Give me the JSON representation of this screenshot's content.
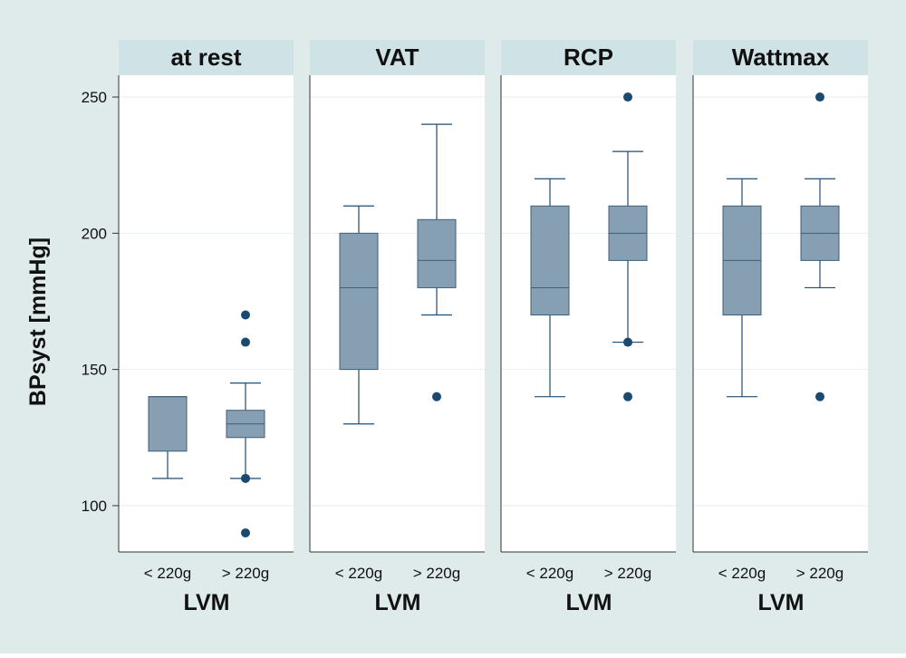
{
  "colors": {
    "background": "#dfeaea",
    "panel_header": "#cfe2e6",
    "plot_bg": "#ffffff",
    "grid": "#e8eeee",
    "box_fill": "#869fb2",
    "box_stroke": "#3e5f7a",
    "whisker": "#1f4e73",
    "outlier": "#1a4a70",
    "text": "#111111"
  },
  "chart_data": {
    "type": "box",
    "ylabel": "BPsyst [mmHg]",
    "xlabel": "LVM",
    "ylim": [
      83,
      258
    ],
    "yticks": [
      100,
      150,
      200,
      250
    ],
    "grid": true,
    "categories": [
      "< 220g",
      "> 220g"
    ],
    "panels": [
      {
        "title": "at rest",
        "boxes": [
          {
            "category": "< 220g",
            "whisker_low": 110,
            "q1": 120,
            "median": 140,
            "q3": 140,
            "whisker_high": 140,
            "outliers": []
          },
          {
            "category": "> 220g",
            "whisker_low": 110,
            "q1": 125,
            "median": 130,
            "q3": 135,
            "whisker_high": 145,
            "outliers": [
              90,
              110,
              160,
              170
            ]
          }
        ]
      },
      {
        "title": "VAT",
        "boxes": [
          {
            "category": "< 220g",
            "whisker_low": 130,
            "q1": 150,
            "median": 180,
            "q3": 200,
            "whisker_high": 210,
            "outliers": []
          },
          {
            "category": "> 220g",
            "whisker_low": 170,
            "q1": 180,
            "median": 190,
            "q3": 205,
            "whisker_high": 240,
            "outliers": [
              140
            ]
          }
        ]
      },
      {
        "title": "RCP",
        "boxes": [
          {
            "category": "< 220g",
            "whisker_low": 140,
            "q1": 170,
            "median": 180,
            "q3": 210,
            "whisker_high": 220,
            "outliers": []
          },
          {
            "category": "> 220g",
            "whisker_low": 160,
            "q1": 190,
            "median": 200,
            "q3": 210,
            "whisker_high": 230,
            "outliers": [
              140,
              160,
              250
            ]
          }
        ]
      },
      {
        "title": "Wattmax",
        "boxes": [
          {
            "category": "< 220g",
            "whisker_low": 140,
            "q1": 170,
            "median": 190,
            "q3": 210,
            "whisker_high": 220,
            "outliers": []
          },
          {
            "category": "> 220g",
            "whisker_low": 180,
            "q1": 190,
            "median": 200,
            "q3": 210,
            "whisker_high": 220,
            "outliers": [
              140,
              250
            ]
          }
        ]
      }
    ]
  }
}
